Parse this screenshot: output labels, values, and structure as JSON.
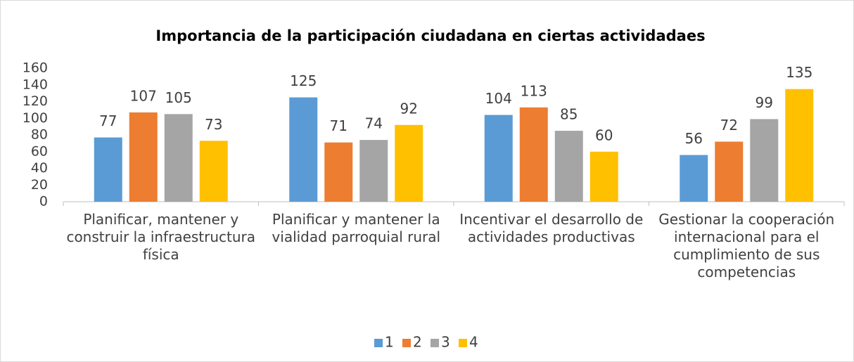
{
  "chart_data": {
    "type": "bar",
    "title": "Importancia de la participación ciudadana en ciertas actividadaes",
    "categories": [
      "Planificar, mantener y construir la infraestructura física",
      "Planificar y mantener la vialidad parroquial rural",
      "Incentivar el desarrollo de actividades productivas",
      "Gestionar la cooperación internacional para el cumplimiento de sus competencias"
    ],
    "series": [
      {
        "name": "1",
        "color": "#5b9bd5",
        "values": [
          77,
          125,
          104,
          56
        ]
      },
      {
        "name": "2",
        "color": "#ed7d31",
        "values": [
          107,
          71,
          113,
          72
        ]
      },
      {
        "name": "3",
        "color": "#a5a5a5",
        "values": [
          105,
          74,
          85,
          99
        ]
      },
      {
        "name": "4",
        "color": "#ffc000",
        "values": [
          73,
          92,
          60,
          135
        ]
      }
    ],
    "ylim": [
      0,
      160
    ],
    "yticks": [
      0,
      20,
      40,
      60,
      80,
      100,
      120,
      140,
      160
    ],
    "grid": false,
    "legend": "bottom"
  }
}
